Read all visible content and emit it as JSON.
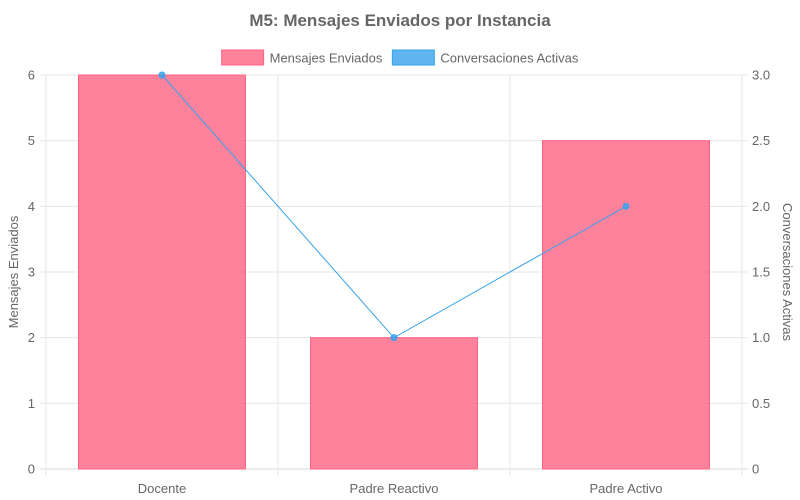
{
  "chart_data": {
    "type": "bar",
    "title": "M5: Mensajes Enviados por Instancia",
    "categories": [
      "Docente",
      "Padre Reactivo",
      "Padre Activo"
    ],
    "series": [
      {
        "name": "Mensajes Enviados",
        "type": "bar",
        "axis": "left",
        "values": [
          6,
          2,
          5
        ],
        "color": "#ff6384",
        "fill": "rgba(255,99,132,0.8)"
      },
      {
        "name": "Conversaciones Activas",
        "type": "line",
        "axis": "right",
        "values": [
          3.0,
          1.0,
          2.0
        ],
        "color": "#36a2eb",
        "fill": "rgba(54,162,235,0.8)"
      }
    ],
    "ylabel": "Mensajes Enviados",
    "y2label": "Conversaciones Activas",
    "ylim": [
      0,
      6
    ],
    "y2lim": [
      0,
      3
    ],
    "yticks": [
      "0",
      "1",
      "2",
      "3",
      "4",
      "5",
      "6"
    ],
    "y2ticks": [
      "0",
      "0.5",
      "1.0",
      "1.5",
      "2.0",
      "2.5",
      "3.0"
    ],
    "grid": true,
    "legend_position": "top"
  }
}
